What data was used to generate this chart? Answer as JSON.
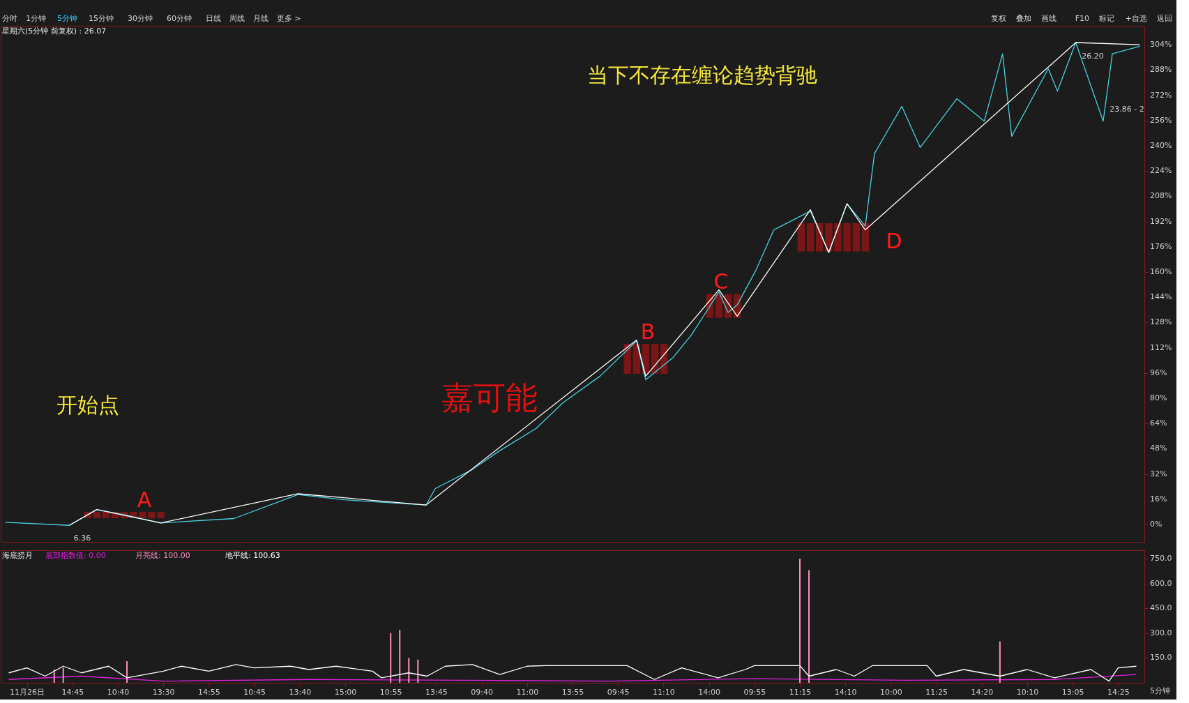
{
  "chart_data": [
    {
      "type": "line",
      "title": "星期六(5分钟 前复权) : 26.07",
      "ylim": [
        -11,
        316
      ],
      "tick_labels": "y",
      "grid": false,
      "categories": [
        null,
        null,
        null,
        null,
        null,
        null,
        null,
        null,
        null,
        null,
        null,
        null,
        null,
        null,
        null,
        null,
        null,
        null,
        null,
        null,
        null,
        null,
        null,
        null,
        null,
        null,
        null,
        null,
        null,
        null,
        null,
        null,
        null,
        null,
        null,
        null,
        null,
        null,
        null,
        null,
        null,
        null,
        null,
        null,
        null,
        null,
        null,
        null,
        null,
        null,
        null,
        null,
        null,
        null,
        null,
        null,
        null,
        null,
        null,
        null,
        null,
        null,
        null,
        null,
        null,
        null,
        null,
        null,
        null,
        null,
        null,
        null,
        null,
        null,
        null,
        null,
        null,
        null,
        null,
        null,
        null,
        null,
        null,
        null,
        null,
        null,
        null,
        null,
        null,
        null,
        null,
        null,
        null,
        null,
        null,
        null,
        null,
        null,
        null,
        null,
        null,
        null,
        null,
        null,
        null,
        null,
        null,
        null,
        null,
        null,
        null,
        null,
        null,
        null,
        null,
        null,
        null,
        null,
        null,
        null,
        null,
        null,
        null,
        null,
        null
      ],
      "yticks": [
        {
          "value": 0,
          "label": "0%"
        },
        {
          "value": 16,
          "label": "16%"
        },
        {
          "value": 32,
          "label": "32%"
        },
        {
          "value": 48,
          "label": "48%"
        },
        {
          "value": 64,
          "label": "64%"
        },
        {
          "value": 80,
          "label": "80%"
        },
        {
          "value": 96,
          "label": "96%"
        },
        {
          "value": 112,
          "label": "112%"
        },
        {
          "value": 128,
          "label": "128%"
        },
        {
          "value": 144,
          "label": "144%"
        },
        {
          "value": 160,
          "label": "160%"
        },
        {
          "value": 176,
          "label": "176%"
        },
        {
          "value": 192,
          "label": "192%"
        },
        {
          "value": 208,
          "label": "208%"
        },
        {
          "value": 224,
          "label": "224%"
        },
        {
          "value": 240,
          "label": "240%"
        },
        {
          "value": 256,
          "label": "256%"
        },
        {
          "value": 272,
          "label": "272%"
        },
        {
          "value": 288,
          "label": "288%"
        },
        {
          "value": 304,
          "label": "304%"
        }
      ],
      "series": [
        {
          "type": "bar",
          "color": "#7a1616",
          "base": [
            null,
            null,
            null,
            null,
            null,
            null,
            null,
            null,
            null,
            4,
            4,
            4,
            4,
            4,
            4,
            4,
            4,
            4,
            null,
            null,
            null,
            null,
            null,
            null,
            null,
            null,
            null,
            null,
            null,
            null,
            null,
            null,
            null,
            null,
            null,
            null,
            null,
            null,
            null,
            null,
            null,
            null,
            null,
            null,
            null,
            null,
            null,
            null,
            null,
            null,
            null,
            null,
            null,
            null,
            null,
            null,
            null,
            null,
            null,
            null,
            null,
            null,
            null,
            null,
            null,
            null,
            null,
            null,
            95.5,
            95.5,
            95.5,
            95.5,
            95.5,
            null,
            null,
            null,
            null,
            131,
            131,
            131,
            131,
            null,
            null,
            null,
            null,
            null,
            null,
            173,
            173,
            173,
            173,
            173,
            173,
            173,
            173,
            null,
            null,
            null,
            null,
            null,
            null,
            null,
            null,
            null,
            null,
            null,
            null,
            null,
            null,
            null,
            null,
            null,
            null,
            null,
            null,
            null,
            null,
            null,
            null,
            null,
            null,
            null,
            null,
            null,
            null
          ],
          "values": [
            null,
            null,
            null,
            null,
            null,
            null,
            null,
            null,
            null,
            4,
            4,
            4,
            4,
            4,
            4,
            4,
            4,
            4,
            null,
            null,
            null,
            null,
            null,
            null,
            null,
            null,
            null,
            null,
            null,
            null,
            null,
            null,
            null,
            null,
            null,
            null,
            null,
            null,
            null,
            null,
            null,
            null,
            null,
            null,
            null,
            null,
            null,
            null,
            null,
            null,
            null,
            null,
            null,
            null,
            null,
            null,
            null,
            null,
            null,
            null,
            null,
            null,
            null,
            null,
            null,
            null,
            null,
            null,
            19,
            19,
            19,
            19,
            19,
            null,
            null,
            null,
            null,
            15,
            15,
            15,
            15,
            null,
            null,
            null,
            null,
            null,
            null,
            18,
            18,
            18,
            18,
            18,
            18,
            18,
            18,
            null,
            null,
            null,
            null,
            null,
            null,
            null,
            null,
            null,
            null,
            null,
            null,
            null,
            null,
            null,
            null,
            null,
            null,
            null,
            null,
            null,
            null,
            null,
            null,
            null,
            null,
            null,
            null,
            null,
            null
          ]
        },
        {
          "color": "#46d2e0",
          "values": [
            1.4,
            null,
            null,
            null,
            null,
            null,
            null,
            -0.5,
            null,
            null,
            9.5,
            null,
            null,
            6.2,
            null,
            null,
            null,
            1.0,
            null,
            null,
            null,
            null,
            null,
            null,
            null,
            3.8,
            null,
            null,
            null,
            null,
            null,
            null,
            19,
            null,
            null,
            null,
            null,
            15.7,
            null,
            null,
            null,
            null,
            null,
            null,
            null,
            null,
            12.4,
            22.8,
            null,
            null,
            null,
            34.7,
            null,
            null,
            46.6,
            null,
            null,
            null,
            60.8,
            null,
            null,
            77.4,
            null,
            null,
            null,
            94,
            null,
            null,
            null,
            116.3,
            91.7,
            null,
            null,
            105.9,
            null,
            120.2,
            null,
            null,
            147.3,
            134.4,
            139.2,
            null,
            160.6,
            null,
            186.7,
            null,
            null,
            null,
            198.6,
            null,
            172.4,
            null,
            203.3,
            null,
            189.1,
            235.1,
            null,
            null,
            265,
            null,
            238.9,
            null,
            null,
            null,
            269.8,
            null,
            null,
            255.6,
            null,
            298.3,
            246,
            null,
            null,
            null,
            288.8,
            274.6,
            null,
            305.4,
            null,
            null,
            255.6,
            298.3,
            null,
            null,
            303
          ]
        },
        {
          "color": "#ffffff",
          "values": [
            null,
            null,
            null,
            null,
            null,
            null,
            null,
            -0.5,
            null,
            null,
            9.5,
            null,
            null,
            null,
            null,
            null,
            null,
            1,
            null,
            null,
            null,
            null,
            null,
            null,
            null,
            null,
            null,
            null,
            null,
            null,
            null,
            null,
            19.5,
            null,
            null,
            null,
            null,
            null,
            null,
            null,
            null,
            null,
            null,
            null,
            null,
            null,
            12.4,
            null,
            null,
            null,
            null,
            null,
            null,
            null,
            null,
            null,
            null,
            null,
            null,
            null,
            null,
            null,
            null,
            null,
            null,
            null,
            null,
            null,
            null,
            116.9,
            94,
            null,
            null,
            null,
            null,
            null,
            null,
            null,
            148.7,
            null,
            132,
            null,
            null,
            null,
            null,
            null,
            null,
            null,
            199.5,
            null,
            172.4,
            null,
            203.3,
            null,
            186.7,
            null,
            null,
            null,
            null,
            null,
            null,
            null,
            null,
            null,
            null,
            null,
            null,
            null,
            null,
            null,
            null,
            null,
            null,
            null,
            null,
            null,
            null,
            305.4,
            null,
            null,
            null,
            null,
            null,
            null,
            304
          ]
        }
      ],
      "annotations": [
        "分时",
        "1分钟",
        "5分钟",
        "15分钟",
        "30分钟",
        "60分钟",
        "日线",
        "周线",
        "月线",
        "更多 >",
        "复权",
        "叠加",
        "画线",
        "F10",
        "标记",
        "+自选",
        "返回",
        "开始点",
        "嘉可能",
        "当下不存在缠论趋势背驰",
        "A",
        "B",
        "C",
        "D",
        "6.36",
        "26.20",
        "23.86 - 2"
      ]
    },
    {
      "type": "line",
      "title": "海底捞月",
      "ylim": [
        0,
        800
      ],
      "grid": false,
      "categories": [
        null,
        null,
        "11月26日",
        null,
        null,
        null,
        null,
        "14:45",
        null,
        null,
        null,
        null,
        "10:40",
        null,
        null,
        null,
        null,
        "13:30",
        null,
        null,
        null,
        null,
        "14:55",
        null,
        null,
        null,
        null,
        "10:45",
        null,
        null,
        null,
        null,
        "13:40",
        null,
        null,
        null,
        null,
        "15:00",
        null,
        null,
        null,
        null,
        "10:55",
        null,
        null,
        null,
        null,
        "13:45",
        null,
        null,
        null,
        null,
        "09:40",
        null,
        null,
        null,
        null,
        "11:00",
        null,
        null,
        null,
        null,
        "13:55",
        null,
        null,
        null,
        null,
        "09:45",
        null,
        null,
        null,
        null,
        "11:10",
        null,
        null,
        null,
        null,
        "14:00",
        null,
        null,
        null,
        null,
        "09:55",
        null,
        null,
        null,
        null,
        "11:15",
        null,
        null,
        null,
        null,
        "14:10",
        null,
        null,
        null,
        null,
        "10:00",
        null,
        null,
        null,
        null,
        "11:25",
        null,
        null,
        null,
        null,
        "14:20",
        null,
        null,
        null,
        null,
        "10:10",
        null,
        null,
        null,
        null,
        "13:05",
        null,
        null,
        null,
        null,
        "14:25",
        null,
        null
      ],
      "yticks": [
        {
          "value": 150,
          "label": "150.0"
        },
        {
          "value": 300,
          "label": "300.0"
        },
        {
          "value": 450,
          "label": "450.0"
        },
        {
          "value": 600,
          "label": "600.0"
        },
        {
          "value": 750,
          "label": "750.0"
        }
      ],
      "series": [
        {
          "name": "底部指数值: 0.00",
          "color": "#e020e0",
          "values": [
            20,
            null,
            null,
            null,
            null,
            null,
            null,
            null,
            40,
            null,
            null,
            null,
            null,
            null,
            null,
            null,
            null,
            10,
            null,
            null,
            null,
            null,
            null,
            null,
            null,
            null,
            null,
            null,
            null,
            null,
            null,
            null,
            null,
            20,
            null,
            null,
            null,
            null,
            null,
            null,
            null,
            null,
            null,
            null,
            null,
            null,
            null,
            null,
            null,
            null,
            15,
            null,
            null,
            null,
            null,
            null,
            null,
            null,
            null,
            null,
            null,
            null,
            null,
            null,
            null,
            null,
            10,
            null,
            null,
            null,
            null,
            null,
            null,
            null,
            null,
            null,
            null,
            null,
            null,
            null,
            null,
            null,
            25,
            null,
            null,
            null,
            null,
            null,
            null,
            null,
            null,
            null,
            null,
            null,
            null,
            null,
            null,
            null,
            null,
            15,
            null,
            null,
            null,
            null,
            null,
            null,
            null,
            null,
            null,
            null,
            null,
            null,
            null,
            null,
            null,
            20,
            null,
            null,
            null,
            null,
            null,
            null,
            null,
            null,
            50
          ]
        },
        {
          "type": "bar",
          "name": "月亮线: 100.00",
          "color": "#ff8fc0",
          "values": [
            null,
            null,
            null,
            null,
            null,
            80,
            90,
            null,
            null,
            null,
            null,
            null,
            null,
            130,
            null,
            null,
            null,
            null,
            null,
            null,
            null,
            null,
            null,
            null,
            null,
            null,
            null,
            null,
            null,
            null,
            null,
            null,
            null,
            null,
            null,
            null,
            null,
            null,
            null,
            null,
            null,
            null,
            300,
            320,
            150,
            140,
            null,
            null,
            null,
            null,
            null,
            null,
            null,
            null,
            null,
            null,
            null,
            null,
            null,
            null,
            null,
            null,
            null,
            null,
            null,
            null,
            null,
            null,
            null,
            null,
            null,
            null,
            null,
            null,
            null,
            null,
            null,
            null,
            null,
            null,
            null,
            null,
            null,
            null,
            null,
            null,
            null,
            750,
            680,
            null,
            null,
            null,
            null,
            null,
            null,
            null,
            null,
            null,
            null,
            null,
            null,
            null,
            null,
            null,
            null,
            null,
            null,
            null,
            null,
            250,
            null,
            null,
            null,
            null,
            null,
            null,
            null,
            null,
            null,
            null,
            null,
            null,
            null,
            null,
            null
          ]
        },
        {
          "name": "地平线: 100.63",
          "color": "#ffffff",
          "values": [
            60,
            null,
            90,
            null,
            40,
            null,
            100,
            null,
            60,
            null,
            null,
            100,
            null,
            30,
            null,
            null,
            null,
            70,
            null,
            100,
            null,
            null,
            70,
            null,
            null,
            110,
            null,
            90,
            null,
            null,
            null,
            100,
            null,
            80,
            null,
            null,
            100,
            null,
            null,
            null,
            70,
            30,
            null,
            null,
            60,
            null,
            40,
            null,
            100,
            null,
            null,
            110,
            null,
            null,
            50,
            null,
            null,
            100,
            null,
            104,
            null,
            null,
            null,
            null,
            null,
            null,
            null,
            null,
            104,
            null,
            null,
            20,
            null,
            null,
            90,
            null,
            null,
            null,
            30,
            null,
            null,
            80,
            104,
            null,
            null,
            null,
            null,
            104,
            40,
            null,
            null,
            80,
            null,
            40,
            null,
            104,
            null,
            null,
            null,
            null,
            null,
            104,
            40,
            null,
            null,
            80,
            null,
            null,
            null,
            40,
            null,
            null,
            80,
            null,
            null,
            30,
            null,
            null,
            null,
            80,
            null,
            10,
            90,
            null,
            100
          ]
        }
      ],
      "annotations": [
        "5分钟"
      ]
    }
  ]
}
